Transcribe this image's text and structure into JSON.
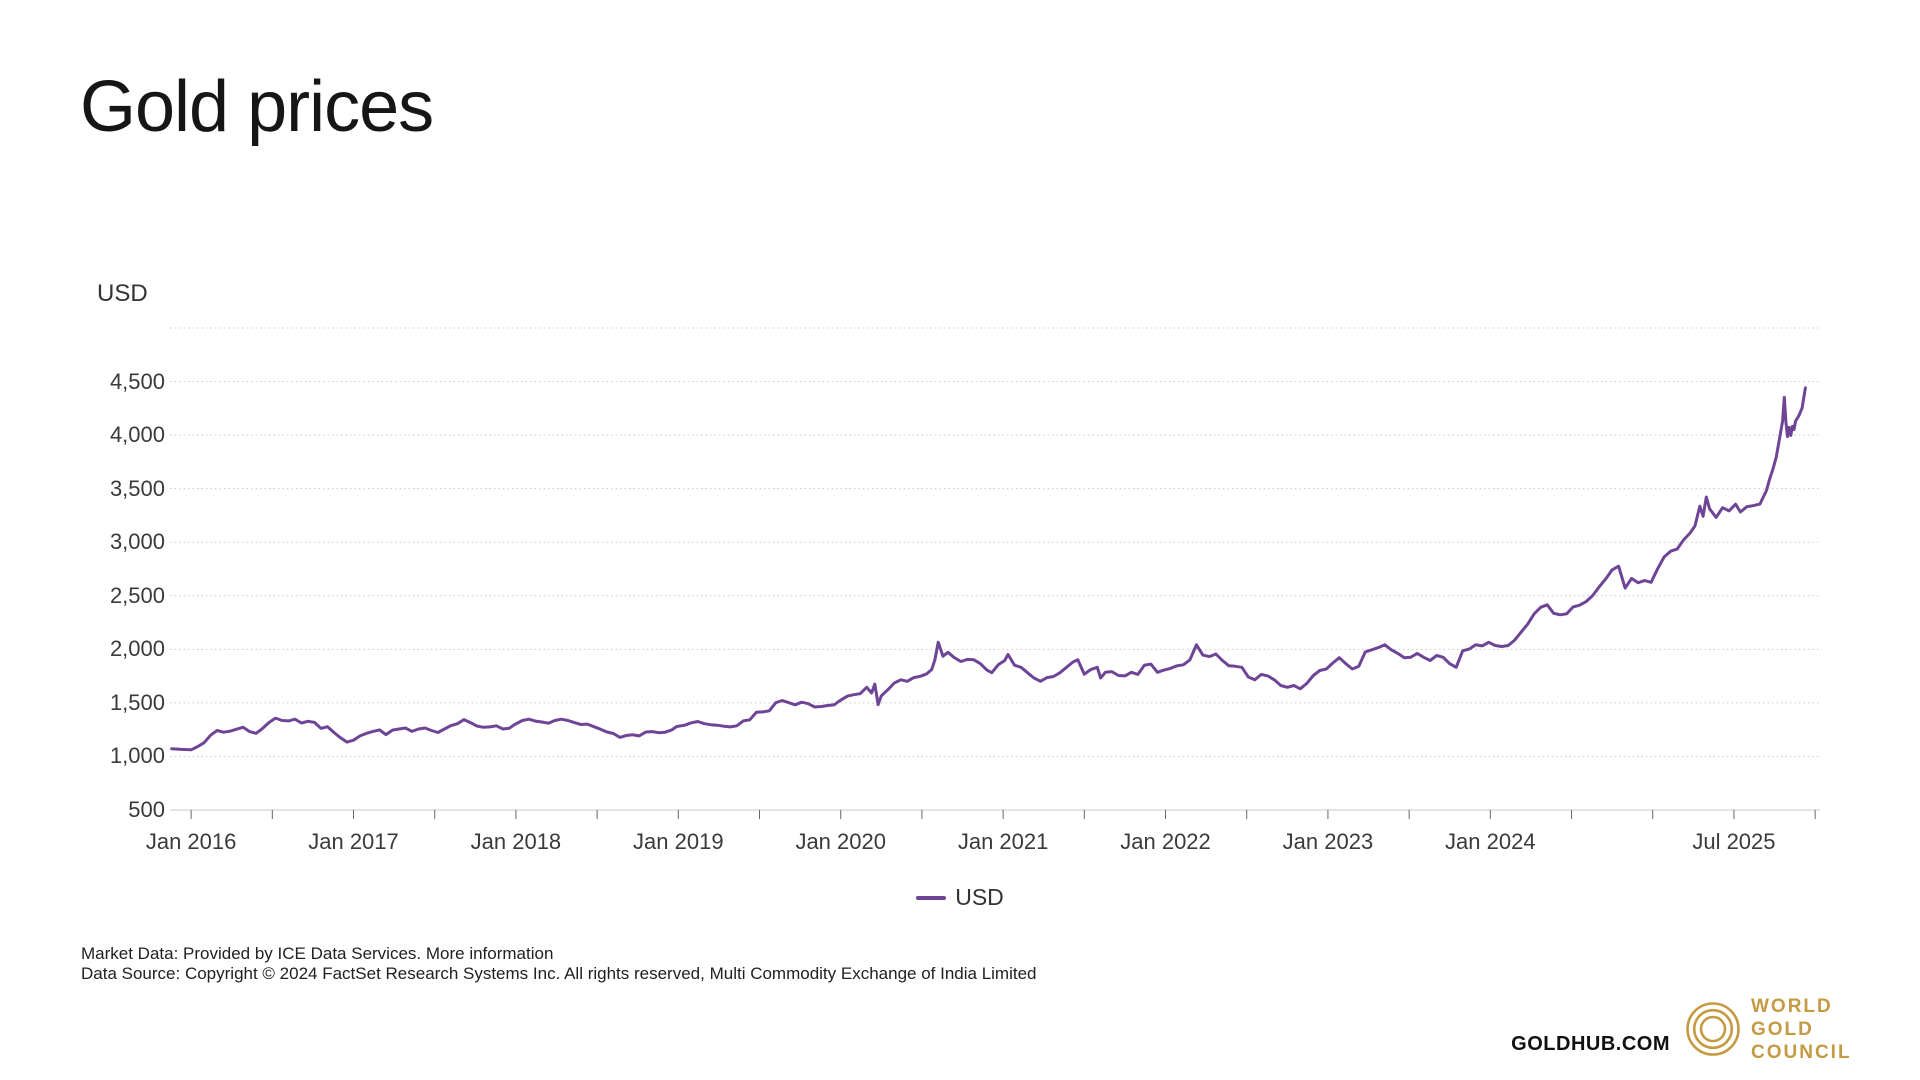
{
  "header": {
    "title": "Gold prices"
  },
  "legend": {
    "label": "USD"
  },
  "footer": {
    "market_data": "Market Data: Provided by ICE Data Services.",
    "more_information": "More information",
    "data_source": "Data Source: Copyright © 2024 FactSet Research Systems Inc. All rights reserved, Multi Commodity Exchange of India Limited"
  },
  "brand": {
    "goldhub": "GOLDHUB.COM",
    "logo_lines": [
      "WORLD",
      "GOLD",
      "COUNCIL"
    ],
    "logo_color": "#c49a42"
  },
  "chart_data": {
    "type": "line",
    "title": "Gold prices",
    "xlabel": "",
    "ylabel": "USD",
    "grid": "dotted horizontal",
    "legend_position": "bottom-center",
    "xlim": [
      2015.87,
      2026.03
    ],
    "ylim": [
      500,
      5000
    ],
    "y_gridlines": [
      1000,
      1500,
      2000,
      2500,
      3000,
      3500,
      4000,
      4500,
      5000
    ],
    "y_ticks": [
      {
        "v": 500,
        "label": "500"
      },
      {
        "v": 1000,
        "label": "1,000"
      },
      {
        "v": 1500,
        "label": "1,500"
      },
      {
        "v": 2000,
        "label": "2,000"
      },
      {
        "v": 2500,
        "label": "2,500"
      },
      {
        "v": 3000,
        "label": "3,000"
      },
      {
        "v": 3500,
        "label": "3,500"
      },
      {
        "v": 4000,
        "label": "4,000"
      },
      {
        "v": 4500,
        "label": "4,500"
      }
    ],
    "x_ticks": [
      2016,
      2016.5,
      2017,
      2017.5,
      2018,
      2018.5,
      2019,
      2019.5,
      2020,
      2020.5,
      2021,
      2021.5,
      2022,
      2022.5,
      2023,
      2023.5,
      2024,
      2024.5,
      2025,
      2025.5,
      2026
    ],
    "x_tick_labels": [
      {
        "t": 2016.0,
        "label": "Jan 2016"
      },
      {
        "t": 2017.0,
        "label": "Jan 2017"
      },
      {
        "t": 2018.0,
        "label": "Jan 2018"
      },
      {
        "t": 2019.0,
        "label": "Jan 2019"
      },
      {
        "t": 2020.0,
        "label": "Jan 2020"
      },
      {
        "t": 2021.0,
        "label": "Jan 2021"
      },
      {
        "t": 2022.0,
        "label": "Jan 2022"
      },
      {
        "t": 2023.0,
        "label": "Jan 2023"
      },
      {
        "t": 2024.0,
        "label": "Jan 2024"
      },
      {
        "t": 2025.5,
        "label": "Jul 2025"
      }
    ],
    "series": [
      {
        "name": "USD",
        "color": "#6e4596",
        "points": [
          [
            2015.88,
            1072
          ],
          [
            2015.94,
            1066
          ],
          [
            2016.0,
            1062
          ],
          [
            2016.04,
            1092
          ],
          [
            2016.08,
            1128
          ],
          [
            2016.12,
            1198
          ],
          [
            2016.16,
            1242
          ],
          [
            2016.2,
            1226
          ],
          [
            2016.24,
            1236
          ],
          [
            2016.28,
            1254
          ],
          [
            2016.32,
            1272
          ],
          [
            2016.36,
            1232
          ],
          [
            2016.4,
            1216
          ],
          [
            2016.44,
            1262
          ],
          [
            2016.48,
            1318
          ],
          [
            2016.52,
            1358
          ],
          [
            2016.56,
            1336
          ],
          [
            2016.6,
            1332
          ],
          [
            2016.64,
            1348
          ],
          [
            2016.68,
            1312
          ],
          [
            2016.72,
            1328
          ],
          [
            2016.76,
            1318
          ],
          [
            2016.8,
            1262
          ],
          [
            2016.84,
            1278
          ],
          [
            2016.88,
            1224
          ],
          [
            2016.92,
            1174
          ],
          [
            2016.96,
            1134
          ],
          [
            2017.0,
            1152
          ],
          [
            2017.04,
            1192
          ],
          [
            2017.08,
            1216
          ],
          [
            2017.12,
            1234
          ],
          [
            2017.16,
            1248
          ],
          [
            2017.2,
            1204
          ],
          [
            2017.24,
            1246
          ],
          [
            2017.28,
            1256
          ],
          [
            2017.32,
            1266
          ],
          [
            2017.36,
            1234
          ],
          [
            2017.4,
            1256
          ],
          [
            2017.44,
            1266
          ],
          [
            2017.48,
            1242
          ],
          [
            2017.52,
            1224
          ],
          [
            2017.56,
            1256
          ],
          [
            2017.6,
            1288
          ],
          [
            2017.64,
            1306
          ],
          [
            2017.68,
            1344
          ],
          [
            2017.72,
            1316
          ],
          [
            2017.76,
            1284
          ],
          [
            2017.8,
            1272
          ],
          [
            2017.84,
            1276
          ],
          [
            2017.88,
            1286
          ],
          [
            2017.92,
            1256
          ],
          [
            2017.96,
            1264
          ],
          [
            2017.99,
            1296
          ],
          [
            2018.04,
            1336
          ],
          [
            2018.08,
            1348
          ],
          [
            2018.12,
            1330
          ],
          [
            2018.16,
            1322
          ],
          [
            2018.2,
            1310
          ],
          [
            2018.24,
            1336
          ],
          [
            2018.28,
            1348
          ],
          [
            2018.32,
            1336
          ],
          [
            2018.36,
            1316
          ],
          [
            2018.4,
            1298
          ],
          [
            2018.44,
            1302
          ],
          [
            2018.48,
            1278
          ],
          [
            2018.52,
            1254
          ],
          [
            2018.56,
            1228
          ],
          [
            2018.6,
            1214
          ],
          [
            2018.64,
            1178
          ],
          [
            2018.68,
            1196
          ],
          [
            2018.72,
            1202
          ],
          [
            2018.76,
            1192
          ],
          [
            2018.8,
            1228
          ],
          [
            2018.84,
            1232
          ],
          [
            2018.88,
            1222
          ],
          [
            2018.92,
            1226
          ],
          [
            2018.96,
            1248
          ],
          [
            2018.99,
            1280
          ],
          [
            2019.04,
            1292
          ],
          [
            2019.08,
            1314
          ],
          [
            2019.12,
            1326
          ],
          [
            2019.16,
            1306
          ],
          [
            2019.2,
            1296
          ],
          [
            2019.24,
            1292
          ],
          [
            2019.28,
            1282
          ],
          [
            2019.32,
            1276
          ],
          [
            2019.36,
            1286
          ],
          [
            2019.4,
            1332
          ],
          [
            2019.44,
            1342
          ],
          [
            2019.48,
            1412
          ],
          [
            2019.52,
            1416
          ],
          [
            2019.56,
            1426
          ],
          [
            2019.6,
            1502
          ],
          [
            2019.64,
            1522
          ],
          [
            2019.68,
            1502
          ],
          [
            2019.72,
            1482
          ],
          [
            2019.76,
            1506
          ],
          [
            2019.8,
            1492
          ],
          [
            2019.84,
            1462
          ],
          [
            2019.88,
            1466
          ],
          [
            2019.92,
            1476
          ],
          [
            2019.96,
            1482
          ],
          [
            2019.99,
            1516
          ],
          [
            2020.04,
            1562
          ],
          [
            2020.08,
            1576
          ],
          [
            2020.12,
            1586
          ],
          [
            2020.16,
            1646
          ],
          [
            2020.19,
            1592
          ],
          [
            2020.21,
            1676
          ],
          [
            2020.23,
            1484
          ],
          [
            2020.25,
            1566
          ],
          [
            2020.29,
            1622
          ],
          [
            2020.33,
            1686
          ],
          [
            2020.37,
            1716
          ],
          [
            2020.41,
            1702
          ],
          [
            2020.45,
            1736
          ],
          [
            2020.49,
            1748
          ],
          [
            2020.53,
            1772
          ],
          [
            2020.56,
            1812
          ],
          [
            2020.58,
            1902
          ],
          [
            2020.6,
            2066
          ],
          [
            2020.63,
            1936
          ],
          [
            2020.66,
            1972
          ],
          [
            2020.7,
            1922
          ],
          [
            2020.74,
            1886
          ],
          [
            2020.78,
            1906
          ],
          [
            2020.82,
            1902
          ],
          [
            2020.86,
            1866
          ],
          [
            2020.9,
            1806
          ],
          [
            2020.93,
            1782
          ],
          [
            2020.97,
            1856
          ],
          [
            2021.01,
            1896
          ],
          [
            2021.03,
            1952
          ],
          [
            2021.07,
            1852
          ],
          [
            2021.11,
            1832
          ],
          [
            2021.15,
            1782
          ],
          [
            2021.19,
            1732
          ],
          [
            2021.23,
            1702
          ],
          [
            2021.27,
            1736
          ],
          [
            2021.31,
            1746
          ],
          [
            2021.35,
            1782
          ],
          [
            2021.39,
            1832
          ],
          [
            2021.43,
            1882
          ],
          [
            2021.46,
            1902
          ],
          [
            2021.5,
            1768
          ],
          [
            2021.54,
            1812
          ],
          [
            2021.58,
            1832
          ],
          [
            2021.6,
            1732
          ],
          [
            2021.63,
            1786
          ],
          [
            2021.67,
            1792
          ],
          [
            2021.71,
            1756
          ],
          [
            2021.75,
            1752
          ],
          [
            2021.79,
            1786
          ],
          [
            2021.83,
            1766
          ],
          [
            2021.87,
            1852
          ],
          [
            2021.91,
            1862
          ],
          [
            2021.95,
            1786
          ],
          [
            2021.99,
            1806
          ],
          [
            2022.03,
            1822
          ],
          [
            2022.07,
            1846
          ],
          [
            2022.11,
            1856
          ],
          [
            2022.15,
            1902
          ],
          [
            2022.19,
            2042
          ],
          [
            2022.23,
            1946
          ],
          [
            2022.27,
            1932
          ],
          [
            2022.31,
            1956
          ],
          [
            2022.35,
            1896
          ],
          [
            2022.39,
            1846
          ],
          [
            2022.43,
            1842
          ],
          [
            2022.47,
            1832
          ],
          [
            2022.51,
            1742
          ],
          [
            2022.55,
            1716
          ],
          [
            2022.59,
            1766
          ],
          [
            2022.63,
            1752
          ],
          [
            2022.67,
            1716
          ],
          [
            2022.71,
            1662
          ],
          [
            2022.75,
            1646
          ],
          [
            2022.79,
            1662
          ],
          [
            2022.83,
            1632
          ],
          [
            2022.87,
            1682
          ],
          [
            2022.91,
            1756
          ],
          [
            2022.95,
            1802
          ],
          [
            2022.99,
            1816
          ],
          [
            2023.03,
            1872
          ],
          [
            2023.07,
            1922
          ],
          [
            2023.11,
            1866
          ],
          [
            2023.15,
            1816
          ],
          [
            2023.19,
            1842
          ],
          [
            2023.23,
            1976
          ],
          [
            2023.27,
            1996
          ],
          [
            2023.31,
            2016
          ],
          [
            2023.35,
            2042
          ],
          [
            2023.39,
            1996
          ],
          [
            2023.43,
            1962
          ],
          [
            2023.47,
            1922
          ],
          [
            2023.51,
            1926
          ],
          [
            2023.55,
            1962
          ],
          [
            2023.59,
            1926
          ],
          [
            2023.63,
            1896
          ],
          [
            2023.67,
            1942
          ],
          [
            2023.71,
            1926
          ],
          [
            2023.75,
            1866
          ],
          [
            2023.79,
            1832
          ],
          [
            2023.83,
            1986
          ],
          [
            2023.87,
            2002
          ],
          [
            2023.91,
            2042
          ],
          [
            2023.95,
            2032
          ],
          [
            2023.99,
            2066
          ],
          [
            2024.03,
            2036
          ],
          [
            2024.07,
            2026
          ],
          [
            2024.11,
            2036
          ],
          [
            2024.15,
            2086
          ],
          [
            2024.19,
            2162
          ],
          [
            2024.23,
            2236
          ],
          [
            2024.27,
            2332
          ],
          [
            2024.31,
            2392
          ],
          [
            2024.35,
            2416
          ],
          [
            2024.39,
            2336
          ],
          [
            2024.43,
            2322
          ],
          [
            2024.47,
            2332
          ],
          [
            2024.51,
            2396
          ],
          [
            2024.55,
            2412
          ],
          [
            2024.59,
            2446
          ],
          [
            2024.63,
            2502
          ],
          [
            2024.67,
            2582
          ],
          [
            2024.71,
            2656
          ],
          [
            2024.75,
            2742
          ],
          [
            2024.79,
            2776
          ],
          [
            2024.83,
            2572
          ],
          [
            2024.87,
            2662
          ],
          [
            2024.91,
            2622
          ],
          [
            2024.95,
            2642
          ],
          [
            2024.99,
            2626
          ],
          [
            2025.03,
            2752
          ],
          [
            2025.07,
            2862
          ],
          [
            2025.11,
            2916
          ],
          [
            2025.15,
            2936
          ],
          [
            2025.19,
            3022
          ],
          [
            2025.23,
            3086
          ],
          [
            2025.26,
            3152
          ],
          [
            2025.29,
            3336
          ],
          [
            2025.31,
            3242
          ],
          [
            2025.33,
            3422
          ],
          [
            2025.35,
            3312
          ],
          [
            2025.39,
            3232
          ],
          [
            2025.43,
            3322
          ],
          [
            2025.47,
            3292
          ],
          [
            2025.51,
            3356
          ],
          [
            2025.54,
            3282
          ],
          [
            2025.58,
            3332
          ],
          [
            2025.62,
            3342
          ],
          [
            2025.66,
            3356
          ],
          [
            2025.7,
            3482
          ],
          [
            2025.72,
            3592
          ],
          [
            2025.74,
            3682
          ],
          [
            2025.76,
            3792
          ],
          [
            2025.78,
            3962
          ],
          [
            2025.8,
            4132
          ],
          [
            2025.81,
            4352
          ],
          [
            2025.82,
            4122
          ],
          [
            2025.83,
            3986
          ],
          [
            2025.84,
            4072
          ],
          [
            2025.85,
            3996
          ],
          [
            2025.86,
            4082
          ],
          [
            2025.87,
            4052
          ],
          [
            2025.88,
            4132
          ],
          [
            2025.9,
            4182
          ],
          [
            2025.92,
            4252
          ],
          [
            2025.94,
            4442
          ]
        ]
      }
    ]
  }
}
